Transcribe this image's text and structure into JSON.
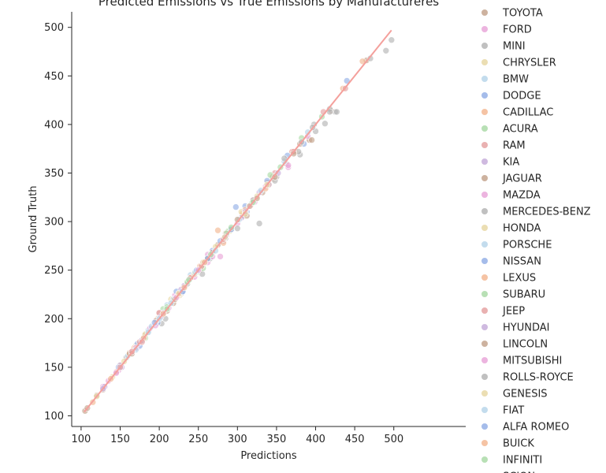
{
  "chart_data": {
    "type": "scatter",
    "title": "Predicted Emissions vs True Emissions by Manufactureres",
    "xlabel": "Predictions",
    "ylabel": "Ground Truth",
    "xlim": [
      88,
      592
    ],
    "ylim": [
      89,
      516
    ],
    "xticks": [
      100,
      150,
      200,
      250,
      300,
      350,
      400,
      450,
      500
    ],
    "yticks": [
      100,
      150,
      200,
      250,
      300,
      350,
      400,
      450,
      500
    ],
    "grid": false,
    "legend_position": "right (outside plot)",
    "reference_line": {
      "x": [
        104,
        497
      ],
      "y": [
        104,
        497
      ],
      "color": "#f4a09c"
    },
    "marker_alpha": 0.65,
    "series": [
      {
        "name": "TOYOTA",
        "color": "#c4a48e",
        "points": [
          [
            105,
            105
          ],
          [
            128,
            127
          ],
          [
            150,
            152
          ],
          [
            165,
            166
          ],
          [
            182,
            183
          ],
          [
            210,
            208
          ],
          [
            232,
            233
          ],
          [
            252,
            250
          ],
          [
            275,
            276
          ],
          [
            308,
            306
          ],
          [
            332,
            330
          ],
          [
            362,
            360
          ],
          [
            392,
            384
          ],
          [
            420,
            414
          ],
          [
            465,
            466
          ]
        ]
      },
      {
        "name": "FORD",
        "color": "#e9a7d9",
        "points": [
          [
            128,
            130
          ],
          [
            148,
            147
          ],
          [
            172,
            170
          ],
          [
            200,
            202
          ],
          [
            220,
            224
          ],
          [
            245,
            243
          ],
          [
            262,
            266
          ],
          [
            278,
            264
          ],
          [
            300,
            298
          ],
          [
            322,
            320
          ],
          [
            345,
            344
          ],
          [
            365,
            356
          ],
          [
            390,
            388
          ]
        ]
      },
      {
        "name": "MINI",
        "color": "#b5b5b5",
        "points": [
          [
            158,
            160
          ],
          [
            185,
            186
          ],
          [
            203,
            195
          ],
          [
            228,
            226
          ],
          [
            255,
            246
          ],
          [
            285,
            283
          ],
          [
            300,
            293
          ],
          [
            328,
            298
          ],
          [
            350,
            346
          ],
          [
            380,
            369
          ],
          [
            400,
            393
          ],
          [
            412,
            401
          ],
          [
            425,
            413
          ],
          [
            490,
            476
          ],
          [
            497,
            487
          ]
        ]
      },
      {
        "name": "CHRYSLER",
        "color": "#e8d8a6",
        "points": [
          [
            140,
            140
          ],
          [
            170,
            172
          ],
          [
            198,
            200
          ],
          [
            226,
            224
          ],
          [
            258,
            257
          ],
          [
            290,
            290
          ],
          [
            318,
            318
          ],
          [
            346,
            344
          ],
          [
            374,
            372
          ]
        ]
      },
      {
        "name": "BMW",
        "color": "#b9d6ea",
        "points": [
          [
            160,
            162
          ],
          [
            186,
            188
          ],
          [
            210,
            214
          ],
          [
            240,
            245
          ],
          [
            262,
            262
          ],
          [
            292,
            292
          ],
          [
            318,
            319
          ],
          [
            340,
            339
          ]
        ]
      },
      {
        "name": "DODGE",
        "color": "#95b0e6",
        "points": [
          [
            175,
            172
          ],
          [
            196,
            198
          ],
          [
            230,
            228
          ],
          [
            268,
            270
          ],
          [
            298,
            315
          ],
          [
            312,
            310
          ],
          [
            340,
            338
          ],
          [
            385,
            380
          ],
          [
            440,
            445
          ]
        ]
      },
      {
        "name": "CADILLAC",
        "color": "#f3b894",
        "points": [
          [
            115,
            114
          ],
          [
            162,
            165
          ],
          [
            205,
            204
          ],
          [
            240,
            242
          ],
          [
            275,
            291
          ],
          [
            306,
            308
          ],
          [
            338,
            340
          ],
          [
            370,
            372
          ],
          [
            435,
            437
          ],
          [
            460,
            465
          ]
        ]
      },
      {
        "name": "ACURA",
        "color": "#acdba8",
        "points": [
          [
            182,
            180
          ],
          [
            205,
            210
          ],
          [
            248,
            248
          ],
          [
            288,
            290
          ],
          [
            318,
            318
          ],
          [
            355,
            356
          ],
          [
            382,
            386
          ],
          [
            408,
            408
          ]
        ]
      },
      {
        "name": "RAM",
        "color": "#e5a3a3",
        "points": [
          [
            150,
            150
          ],
          [
            200,
            206
          ],
          [
            240,
            242
          ],
          [
            285,
            288
          ],
          [
            320,
            322
          ],
          [
            348,
            350
          ],
          [
            370,
            372
          ],
          [
            410,
            413
          ],
          [
            438,
            437
          ]
        ]
      },
      {
        "name": "KIA",
        "color": "#c7aedb",
        "points": [
          [
            130,
            130
          ],
          [
            150,
            152
          ],
          [
            178,
            178
          ],
          [
            205,
            206
          ],
          [
            232,
            234
          ],
          [
            255,
            256
          ],
          [
            282,
            280
          ],
          [
            305,
            304
          ],
          [
            328,
            330
          ],
          [
            352,
            350
          ]
        ]
      },
      {
        "name": "JAGUAR",
        "color": "#c4a48e",
        "points": [
          [
            108,
            108
          ],
          [
            120,
            121
          ],
          [
            162,
            164
          ],
          [
            218,
            216
          ],
          [
            268,
            268
          ],
          [
            312,
            306
          ],
          [
            345,
            346
          ],
          [
            380,
            380
          ],
          [
            395,
            384
          ]
        ]
      },
      {
        "name": "MAZDA",
        "color": "#e9a7d9",
        "points": [
          [
            135,
            136
          ],
          [
            165,
            166
          ],
          [
            188,
            190
          ],
          [
            212,
            211
          ],
          [
            238,
            240
          ],
          [
            262,
            258
          ],
          [
            286,
            286
          ],
          [
            312,
            314
          ],
          [
            336,
            336
          ],
          [
            365,
            358
          ]
        ]
      },
      {
        "name": "MERCEDES-BENZ",
        "color": "#b5b5b5",
        "points": [
          [
            180,
            180
          ],
          [
            208,
            200
          ],
          [
            236,
            236
          ],
          [
            265,
            262
          ],
          [
            292,
            292
          ],
          [
            320,
            322
          ],
          [
            348,
            342
          ],
          [
            378,
            372
          ],
          [
            398,
            400
          ],
          [
            418,
            416
          ]
        ]
      },
      {
        "name": "HONDA",
        "color": "#e8d8a6",
        "points": [
          [
            120,
            120
          ],
          [
            155,
            156
          ],
          [
            182,
            184
          ],
          [
            215,
            220
          ],
          [
            245,
            246
          ],
          [
            272,
            274
          ],
          [
            305,
            310
          ],
          [
            325,
            326
          ]
        ]
      },
      {
        "name": "PORSCHE",
        "color": "#b9d6ea",
        "points": [
          [
            190,
            192
          ],
          [
            218,
            220
          ],
          [
            246,
            248
          ],
          [
            272,
            270
          ],
          [
            302,
            302
          ],
          [
            330,
            332
          ],
          [
            360,
            362
          ],
          [
            390,
            392
          ]
        ]
      },
      {
        "name": "NISSAN",
        "color": "#95b0e6",
        "points": [
          [
            148,
            150
          ],
          [
            172,
            174
          ],
          [
            198,
            196
          ],
          [
            222,
            228
          ],
          [
            248,
            250
          ],
          [
            278,
            280
          ],
          [
            310,
            316
          ],
          [
            338,
            342
          ],
          [
            364,
            368
          ]
        ]
      },
      {
        "name": "LEXUS",
        "color": "#f3b894",
        "points": [
          [
            138,
            138
          ],
          [
            168,
            170
          ],
          [
            196,
            198
          ],
          [
            224,
            224
          ],
          [
            252,
            254
          ],
          [
            282,
            278
          ],
          [
            310,
            312
          ],
          [
            336,
            334
          ]
        ]
      },
      {
        "name": "SUBARU",
        "color": "#acdba8",
        "points": [
          [
            178,
            178
          ],
          [
            210,
            212
          ],
          [
            236,
            238
          ],
          [
            256,
            252
          ],
          [
            286,
            288
          ],
          [
            315,
            316
          ],
          [
            342,
            348
          ]
        ]
      },
      {
        "name": "JEEP",
        "color": "#e5a3a3",
        "points": [
          [
            145,
            145
          ],
          [
            175,
            176
          ],
          [
            200,
            206
          ],
          [
            226,
            226
          ],
          [
            254,
            254
          ],
          [
            282,
            282
          ],
          [
            316,
            316
          ],
          [
            340,
            338
          ],
          [
            372,
            372
          ]
        ]
      },
      {
        "name": "HYUNDAI",
        "color": "#c7aedb",
        "points": [
          [
            128,
            128
          ],
          [
            152,
            150
          ],
          [
            178,
            178
          ],
          [
            202,
            202
          ],
          [
            228,
            230
          ],
          [
            258,
            258
          ],
          [
            284,
            284
          ],
          [
            310,
            310
          ]
        ]
      },
      {
        "name": "LINCOLN",
        "color": "#c4a48e",
        "points": [
          [
            165,
            164
          ],
          [
            220,
            220
          ],
          [
            262,
            262
          ],
          [
            300,
            302
          ],
          [
            325,
            324
          ],
          [
            348,
            346
          ],
          [
            372,
            370
          ]
        ]
      },
      {
        "name": "MITSUBISHI",
        "color": "#e9a7d9",
        "points": [
          [
            145,
            144
          ],
          [
            170,
            170
          ],
          [
            195,
            193
          ],
          [
            222,
            222
          ],
          [
            250,
            250
          ],
          [
            268,
            264
          ]
        ]
      },
      {
        "name": "ROLLS-ROYCE",
        "color": "#b5b5b5",
        "points": [
          [
            360,
            365
          ],
          [
            382,
            382
          ],
          [
            396,
            397
          ],
          [
            418,
            413
          ],
          [
            427,
            413
          ],
          [
            470,
            468
          ]
        ]
      },
      {
        "name": "GENESIS",
        "color": "#e8d8a6",
        "points": [
          [
            225,
            226
          ],
          [
            256,
            258
          ],
          [
            284,
            284
          ],
          [
            310,
            308
          ],
          [
            338,
            338
          ]
        ]
      },
      {
        "name": "FIAT",
        "color": "#b9d6ea",
        "points": [
          [
            170,
            168
          ],
          [
            186,
            186
          ],
          [
            200,
            200
          ],
          [
            215,
            216
          ]
        ]
      },
      {
        "name": "ALFA ROMEO",
        "color": "#95b0e6",
        "points": [
          [
            194,
            196
          ],
          [
            230,
            228
          ],
          [
            262,
            262
          ],
          [
            292,
            292
          ]
        ]
      },
      {
        "name": "BUICK",
        "color": "#f3b894",
        "points": [
          [
            180,
            180
          ],
          [
            205,
            205
          ],
          [
            232,
            232
          ],
          [
            258,
            258
          ]
        ]
      },
      {
        "name": "INFINITI",
        "color": "#acdba8",
        "points": [
          [
            210,
            210
          ],
          [
            238,
            240
          ],
          [
            266,
            266
          ],
          [
            292,
            294
          ],
          [
            320,
            320
          ]
        ]
      },
      {
        "name": "SCION",
        "color": "#e5a3a3",
        "points": [
          [
            150,
            150
          ],
          [
            165,
            166
          ],
          [
            178,
            176
          ]
        ]
      }
    ]
  }
}
